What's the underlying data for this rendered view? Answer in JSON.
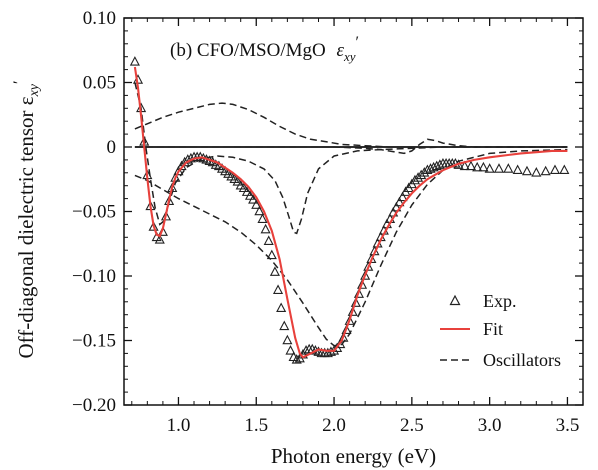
{
  "chart_data": {
    "type": "line",
    "panel_title": "(b) CFO/MSO/MgO",
    "panel_symbol": "ε",
    "panel_symbol_sub": "xy",
    "panel_symbol_sup": "′",
    "xlabel": "Photon energy (eV)",
    "ylabel": "Off-diagonal dielectric tensor ε",
    "ylabel_sub": "xy",
    "ylabel_sup": "′",
    "xlim": [
      0.65,
      3.6
    ],
    "ylim": [
      -0.2,
      0.1
    ],
    "x_ticks": [
      1.0,
      1.5,
      2.0,
      2.5,
      3.0,
      3.5
    ],
    "x_tick_labels": [
      "1.0",
      "1.5",
      "2.0",
      "2.5",
      "3.0",
      "3.5"
    ],
    "y_ticks": [
      0.1,
      0.05,
      0,
      -0.05,
      -0.1,
      -0.15,
      -0.2
    ],
    "y_tick_labels": [
      "0.10",
      "0.05",
      "0",
      "−0.05",
      "−0.10",
      "−0.15",
      "−0.20"
    ],
    "grid": false,
    "legend_position": "bottom-right",
    "legend": [
      {
        "label": "Exp.",
        "marker": "triangle-open",
        "color": "#222222"
      },
      {
        "label": "Fit",
        "line": "solid",
        "color": "#e8413c"
      },
      {
        "label": "Oscillators",
        "line": "dashed",
        "color": "#222222"
      }
    ],
    "colors": {
      "exp": "#222222",
      "fit": "#e8413c",
      "oscillators": "#222222"
    },
    "series": [
      {
        "name": "Exp.",
        "kind": "scatter",
        "x": [
          0.72,
          0.74,
          0.76,
          0.78,
          0.8,
          0.82,
          0.84,
          0.86,
          0.88,
          0.9,
          0.92,
          0.94,
          0.96,
          0.98,
          1.0,
          1.02,
          1.04,
          1.06,
          1.08,
          1.1,
          1.12,
          1.14,
          1.16,
          1.18,
          1.2,
          1.22,
          1.24,
          1.26,
          1.28,
          1.3,
          1.32,
          1.34,
          1.36,
          1.38,
          1.4,
          1.42,
          1.44,
          1.46,
          1.48,
          1.5,
          1.52,
          1.54,
          1.56,
          1.58,
          1.6,
          1.62,
          1.64,
          1.66,
          1.68,
          1.7,
          1.72,
          1.74,
          1.76,
          1.78,
          1.8,
          1.82,
          1.84,
          1.86,
          1.88,
          1.9,
          1.92,
          1.94,
          1.96,
          1.98,
          2.0,
          2.02,
          2.04,
          2.06,
          2.08,
          2.1,
          2.12,
          2.14,
          2.16,
          2.18,
          2.2,
          2.22,
          2.24,
          2.26,
          2.28,
          2.3,
          2.32,
          2.34,
          2.36,
          2.38,
          2.4,
          2.42,
          2.44,
          2.46,
          2.48,
          2.5,
          2.52,
          2.54,
          2.56,
          2.58,
          2.6,
          2.62,
          2.64,
          2.66,
          2.68,
          2.7,
          2.72,
          2.74,
          2.76,
          2.78,
          2.8,
          2.84,
          2.88,
          2.92,
          2.96,
          3.0,
          3.06,
          3.12,
          3.18,
          3.24,
          3.3,
          3.36,
          3.42,
          3.48
        ],
        "y": [
          0.066,
          0.052,
          0.03,
          0.004,
          -0.022,
          -0.046,
          -0.062,
          -0.07,
          -0.072,
          -0.066,
          -0.054,
          -0.042,
          -0.032,
          -0.024,
          -0.019,
          -0.015,
          -0.012,
          -0.01,
          -0.009,
          -0.008,
          -0.008,
          -0.008,
          -0.009,
          -0.01,
          -0.011,
          -0.012,
          -0.014,
          -0.015,
          -0.017,
          -0.019,
          -0.021,
          -0.023,
          -0.025,
          -0.027,
          -0.03,
          -0.032,
          -0.035,
          -0.038,
          -0.041,
          -0.045,
          -0.05,
          -0.056,
          -0.064,
          -0.073,
          -0.084,
          -0.097,
          -0.111,
          -0.125,
          -0.139,
          -0.15,
          -0.158,
          -0.163,
          -0.165,
          -0.164,
          -0.161,
          -0.158,
          -0.157,
          -0.157,
          -0.158,
          -0.159,
          -0.16,
          -0.16,
          -0.16,
          -0.159,
          -0.158,
          -0.156,
          -0.153,
          -0.148,
          -0.142,
          -0.135,
          -0.128,
          -0.121,
          -0.114,
          -0.107,
          -0.1,
          -0.093,
          -0.087,
          -0.081,
          -0.075,
          -0.07,
          -0.065,
          -0.06,
          -0.056,
          -0.051,
          -0.047,
          -0.043,
          -0.039,
          -0.035,
          -0.032,
          -0.029,
          -0.026,
          -0.024,
          -0.022,
          -0.02,
          -0.018,
          -0.017,
          -0.016,
          -0.015,
          -0.014,
          -0.013,
          -0.013,
          -0.013,
          -0.013,
          -0.013,
          -0.014,
          -0.015,
          -0.015,
          -0.016,
          -0.016,
          -0.017,
          -0.017,
          -0.017,
          -0.018,
          -0.019,
          -0.02,
          -0.019,
          -0.018,
          -0.018
        ]
      },
      {
        "name": "Fit",
        "kind": "line",
        "x": [
          0.72,
          0.74,
          0.76,
          0.78,
          0.8,
          0.82,
          0.84,
          0.86,
          0.88,
          0.9,
          0.92,
          0.94,
          0.96,
          0.98,
          1.0,
          1.05,
          1.1,
          1.15,
          1.2,
          1.25,
          1.3,
          1.35,
          1.4,
          1.45,
          1.5,
          1.55,
          1.6,
          1.65,
          1.7,
          1.75,
          1.78,
          1.8,
          1.85,
          1.9,
          1.95,
          2.0,
          2.05,
          2.1,
          2.15,
          2.2,
          2.25,
          2.3,
          2.35,
          2.4,
          2.45,
          2.5,
          2.55,
          2.6,
          2.7,
          2.8,
          2.9,
          3.0,
          3.2,
          3.4,
          3.5
        ],
        "y": [
          0.062,
          0.046,
          0.024,
          0.0,
          -0.024,
          -0.046,
          -0.061,
          -0.068,
          -0.069,
          -0.063,
          -0.052,
          -0.041,
          -0.031,
          -0.024,
          -0.019,
          -0.012,
          -0.009,
          -0.008,
          -0.01,
          -0.012,
          -0.016,
          -0.02,
          -0.025,
          -0.031,
          -0.039,
          -0.05,
          -0.065,
          -0.087,
          -0.118,
          -0.148,
          -0.16,
          -0.163,
          -0.16,
          -0.157,
          -0.158,
          -0.158,
          -0.15,
          -0.134,
          -0.115,
          -0.099,
          -0.085,
          -0.072,
          -0.061,
          -0.051,
          -0.043,
          -0.036,
          -0.03,
          -0.025,
          -0.018,
          -0.013,
          -0.01,
          -0.008,
          -0.005,
          -0.003,
          -0.003
        ]
      },
      {
        "name": "Oscillators",
        "kind": "dashed",
        "groups": [
          {
            "x": [
              0.72,
              0.8,
              0.9,
              1.0,
              1.1,
              1.2,
              1.28,
              1.35,
              1.45,
              1.55,
              1.65,
              1.75,
              1.85,
              1.95,
              2.05,
              2.2,
              2.35,
              2.5,
              2.7,
              2.9,
              3.1,
              3.3,
              3.5
            ],
            "y": [
              0.014,
              0.018,
              0.023,
              0.027,
              0.03,
              0.033,
              0.034,
              0.033,
              0.029,
              0.023,
              0.016,
              0.01,
              0.006,
              0.004,
              0.002,
              0.001,
              0.0,
              0.0,
              0.0,
              0.0,
              0.0,
              0.0,
              0.0
            ]
          },
          {
            "x": [
              0.72,
              0.76,
              0.79,
              0.82,
              0.85,
              0.88,
              0.91,
              0.94,
              0.98,
              1.05,
              1.15,
              1.25,
              1.35,
              1.45,
              1.55,
              1.62,
              1.67,
              1.71,
              1.74,
              1.76,
              1.79,
              1.83,
              1.9,
              2.0,
              2.15,
              2.3,
              2.5,
              2.7,
              3.0,
              3.3,
              3.5
            ],
            "y": [
              0.05,
              0.03,
              0.0,
              -0.025,
              -0.047,
              -0.06,
              -0.057,
              -0.043,
              -0.028,
              -0.016,
              -0.009,
              -0.007,
              -0.008,
              -0.011,
              -0.017,
              -0.026,
              -0.039,
              -0.054,
              -0.066,
              -0.067,
              -0.056,
              -0.036,
              -0.017,
              -0.007,
              -0.003,
              -0.002,
              -0.001,
              0.0,
              0.0,
              0.0,
              0.0
            ]
          },
          {
            "x": [
              0.72,
              0.8,
              0.9,
              1.0,
              1.1,
              1.2,
              1.3,
              1.4,
              1.5,
              1.6,
              1.7,
              1.8,
              1.9,
              1.95,
              2.0,
              2.05,
              2.1,
              2.2,
              2.3,
              2.4,
              2.5,
              2.6,
              2.7,
              2.8,
              3.0,
              3.2,
              3.5
            ],
            "y": [
              -0.022,
              -0.026,
              -0.033,
              -0.04,
              -0.046,
              -0.052,
              -0.058,
              -0.066,
              -0.076,
              -0.088,
              -0.103,
              -0.121,
              -0.14,
              -0.149,
              -0.154,
              -0.153,
              -0.145,
              -0.12,
              -0.092,
              -0.066,
              -0.045,
              -0.029,
              -0.018,
              -0.011,
              -0.005,
              -0.003,
              -0.002
            ]
          },
          {
            "x": [
              0.72,
              1.0,
              1.5,
              2.0,
              2.2,
              2.3,
              2.4,
              2.45,
              2.5,
              2.55,
              2.6,
              2.65,
              2.7,
              2.8,
              2.9,
              3.0,
              3.2,
              3.5
            ],
            "y": [
              0.0,
              0.0,
              0.0,
              0.0,
              -0.001,
              -0.002,
              -0.004,
              -0.005,
              -0.003,
              0.002,
              0.006,
              0.005,
              0.003,
              0.001,
              0.0,
              0.0,
              0.0,
              0.0
            ]
          }
        ]
      }
    ]
  }
}
